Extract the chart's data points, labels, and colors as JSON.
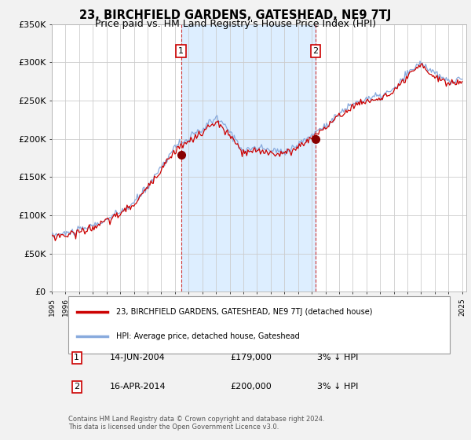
{
  "title": "23, BIRCHFIELD GARDENS, GATESHEAD, NE9 7TJ",
  "subtitle": "Price paid vs. HM Land Registry's House Price Index (HPI)",
  "title_fontsize": 10.5,
  "subtitle_fontsize": 9,
  "ylim": [
    0,
    350000
  ],
  "yticks": [
    0,
    50000,
    100000,
    150000,
    200000,
    250000,
    300000,
    350000
  ],
  "ytick_labels": [
    "£0",
    "£50K",
    "£100K",
    "£150K",
    "£200K",
    "£250K",
    "£300K",
    "£350K"
  ],
  "xlim_start": 1995.0,
  "xlim_end": 2025.3,
  "background_color": "#f2f2f2",
  "plot_bg_color": "#ffffff",
  "grid_color": "#cccccc",
  "red_line_color": "#cc0000",
  "blue_line_color": "#88aadd",
  "shade_color": "#ddeeff",
  "marker1_date": 2004.45,
  "marker1_label": "1",
  "marker1_price": 179000,
  "marker1_date_str": "14-JUN-2004",
  "marker1_price_str": "£179,000",
  "marker1_hpi_str": "3% ↓ HPI",
  "marker2_date": 2014.29,
  "marker2_label": "2",
  "marker2_price": 200000,
  "marker2_date_str": "16-APR-2014",
  "marker2_price_str": "£200,000",
  "marker2_hpi_str": "3% ↓ HPI",
  "legend_line1": "23, BIRCHFIELD GARDENS, GATESHEAD, NE9 7TJ (detached house)",
  "legend_line2": "HPI: Average price, detached house, Gateshead",
  "footer": "Contains HM Land Registry data © Crown copyright and database right 2024.\nThis data is licensed under the Open Government Licence v3.0."
}
